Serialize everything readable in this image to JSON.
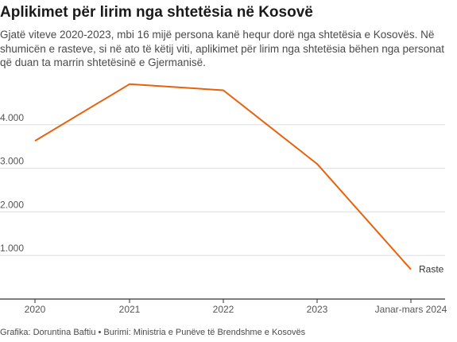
{
  "title": "Aplikimet për lirim nga shtetësia në Kosovë",
  "subtitle": "Gjatë viteve 2020-2023, mbi 16 mijë persona kanë hequr dorë nga shtetësia e Kosovës. Në shumicën e rasteve, si në ato të këtij viti, aplikimet për lirim nga shtetësia bëhen nga personat që duan ta marrin shtetësinë e Gjermanisë.",
  "footer": "Grafika: Doruntina Baftiu • Burimi: Ministria e Punëve të Brendshme e Kosovës",
  "colors": {
    "line": "#e8620c",
    "grid": "#dddddd",
    "axis": "#333333"
  },
  "chart_data": {
    "type": "line",
    "categories": [
      "2020",
      "2021",
      "2022",
      "2023",
      "Janar-mars 2024"
    ],
    "series": [
      {
        "name": "Raste",
        "values": [
          3630,
          4930,
          4790,
          3100,
          680
        ]
      }
    ],
    "yticks": [
      1000,
      2000,
      3000,
      4000
    ],
    "ytick_labels": [
      "1.000",
      "2.000",
      "3.000",
      "4.000"
    ],
    "ylim": [
      0,
      5000
    ],
    "grid": true,
    "xlabel": "",
    "ylabel": ""
  }
}
